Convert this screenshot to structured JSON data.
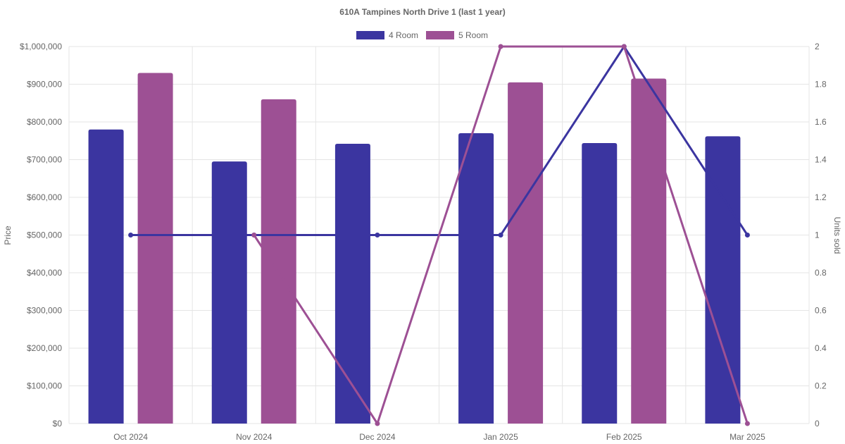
{
  "chart_data": {
    "type": "bar",
    "title": "610A Tampines North Drive 1 (last 1 year)",
    "categories": [
      "Oct 2024",
      "Nov 2024",
      "Dec 2024",
      "Jan 2025",
      "Feb 2025",
      "Mar 2025"
    ],
    "y_axis": {
      "label": "Price",
      "range": [
        0,
        1000000
      ],
      "ticks": [
        "$0",
        "$100,000",
        "$200,000",
        "$300,000",
        "$400,000",
        "$500,000",
        "$600,000",
        "$700,000",
        "$800,000",
        "$900,000",
        "$1,000,000"
      ]
    },
    "y2_axis": {
      "label": "Units sold",
      "range": [
        0,
        2
      ],
      "ticks": [
        "0",
        "0.2",
        "0.4",
        "0.6",
        "0.8",
        "1",
        "1.2",
        "1.4",
        "1.6",
        "1.8",
        "2"
      ]
    },
    "grid": true,
    "legend_position": "top",
    "series": [
      {
        "name": "4 Room",
        "color": "#3b35a0",
        "price": [
          780000,
          695000,
          742000,
          770000,
          744000,
          762000
        ],
        "units": [
          1,
          1,
          1,
          1,
          2,
          1
        ]
      },
      {
        "name": "5 Room",
        "color": "#9d5094",
        "price": [
          930000,
          860000,
          null,
          905000,
          915000,
          null
        ],
        "units": [
          null,
          1,
          0,
          2,
          2,
          0
        ]
      }
    ]
  }
}
